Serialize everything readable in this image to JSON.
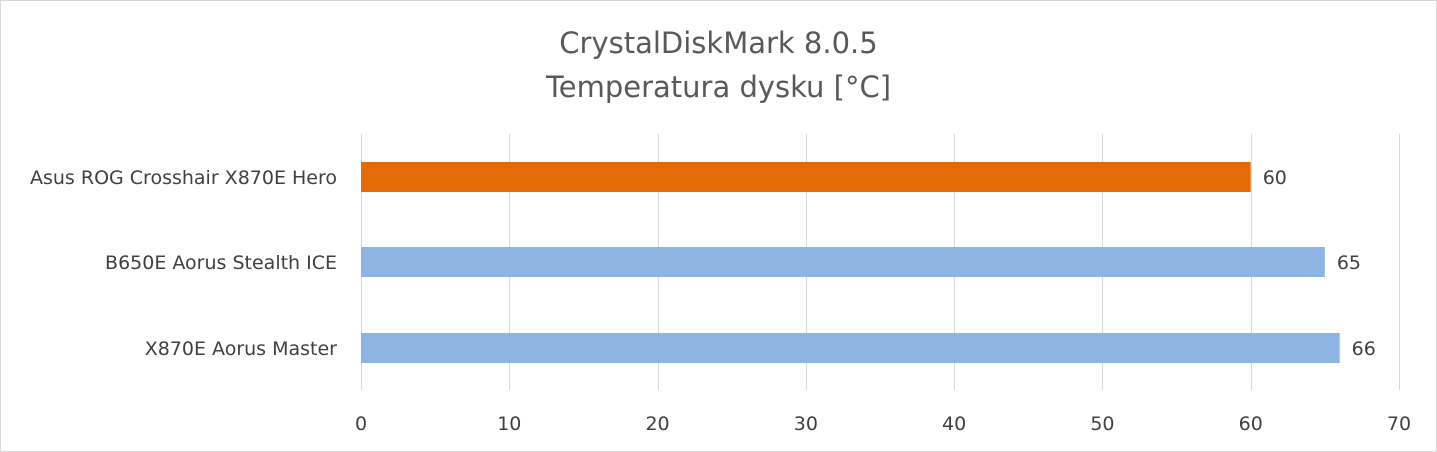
{
  "chart_data": {
    "type": "bar",
    "orientation": "horizontal",
    "title": "CrystalDiskMark 8.0.5",
    "subtitle": "Temperatura dysku [°C]",
    "categories": [
      "Asus ROG Crosshair X870E Hero",
      "B650E Aorus Stealth ICE",
      "X870E Aorus Master"
    ],
    "values": [
      60,
      65,
      66
    ],
    "bar_colors": [
      "#e36c09",
      "#8eb4e3",
      "#8eb4e3"
    ],
    "xlim": [
      0,
      70
    ],
    "x_ticks": [
      0,
      10,
      20,
      30,
      40,
      50,
      60,
      70
    ],
    "grid": true,
    "legend": "none",
    "data_labels": true
  },
  "colors": {
    "highlight": "#e36c09",
    "default_bar": "#8eb4e3",
    "grid": "#d9d9d9",
    "text": "#404040",
    "title": "#595959"
  }
}
